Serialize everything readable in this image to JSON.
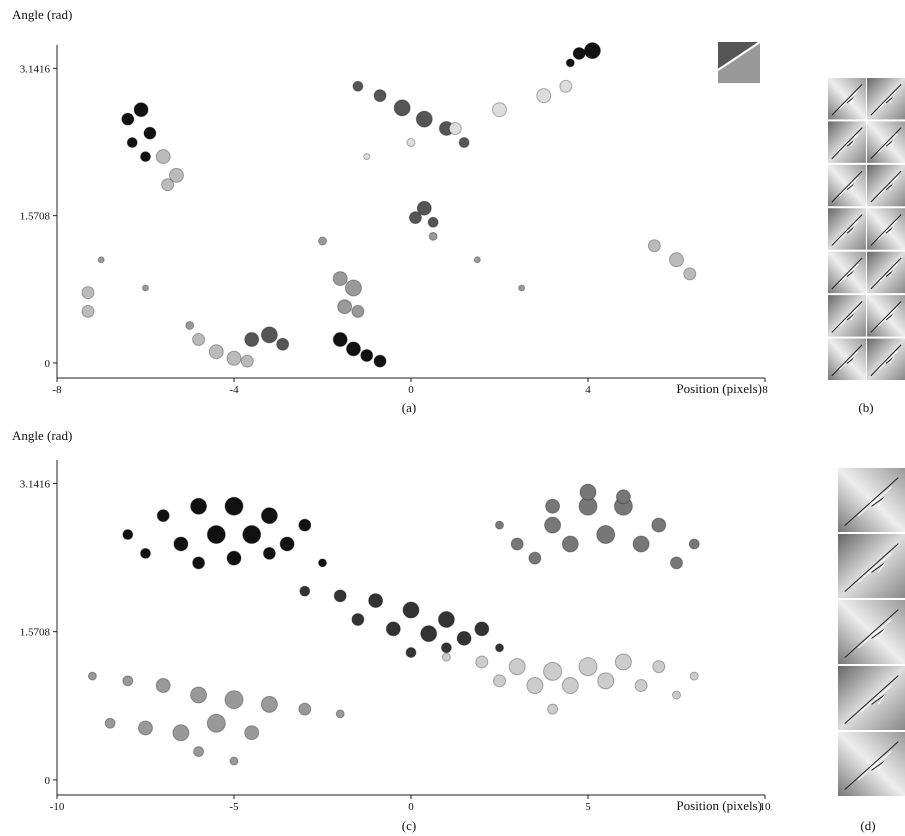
{
  "chart_data": [
    {
      "type": "scatter",
      "y_label": "Angle (rad)",
      "x_label": "Position (pixels)",
      "caption": "(a)",
      "xlim": [
        -8,
        8
      ],
      "xticks": [
        -8,
        -4,
        0,
        4,
        8
      ],
      "ylim": [
        -0.16,
        3.39
      ],
      "yticks": [
        0,
        1.5708,
        3.1416
      ],
      "series": [
        {
          "color": "#111111",
          "x": [
            -6.4,
            -6.1,
            -5.9,
            -6.3,
            -6.0,
            -1.6,
            -1.3,
            -1.0,
            -0.7,
            3.8,
            4.1,
            3.6
          ],
          "y": [
            2.6,
            2.7,
            2.45,
            2.35,
            2.2,
            0.25,
            0.15,
            0.08,
            0.02,
            3.3,
            3.33,
            3.2
          ],
          "size": [
            6,
            7,
            6,
            5,
            5,
            7,
            7,
            6,
            6,
            6,
            8,
            4
          ]
        },
        {
          "color": "#555555",
          "x": [
            -1.2,
            -0.7,
            -0.2,
            0.3,
            0.8,
            1.2,
            -3.6,
            -3.2,
            -2.9,
            0.1,
            0.3,
            0.5
          ],
          "y": [
            2.95,
            2.85,
            2.72,
            2.6,
            2.5,
            2.35,
            0.25,
            0.3,
            0.2,
            1.55,
            1.65,
            1.5
          ],
          "size": [
            5,
            6,
            8,
            8,
            7,
            5,
            7,
            8,
            6,
            6,
            7,
            5
          ]
        },
        {
          "color": "#999999",
          "x": [
            -1.6,
            -1.3,
            -1.5,
            -1.2,
            -2.0,
            0.5,
            1.5,
            2.5,
            -7.0,
            -6.0,
            -5.0
          ],
          "y": [
            0.9,
            0.8,
            0.6,
            0.55,
            1.3,
            1.35,
            1.1,
            0.8,
            1.1,
            0.8,
            0.4
          ],
          "size": [
            7,
            8,
            7,
            6,
            4,
            4,
            3,
            3,
            3,
            3,
            4
          ]
        },
        {
          "color": "#bbbbbb",
          "x": [
            -5.6,
            -5.3,
            -5.5,
            5.5,
            6.0,
            6.3,
            -4.8,
            -4.4,
            -4.0,
            -3.7,
            -7.3,
            -7.3
          ],
          "y": [
            2.2,
            2.0,
            1.9,
            1.25,
            1.1,
            0.95,
            0.25,
            0.12,
            0.05,
            0.02,
            0.75,
            0.55
          ],
          "size": [
            7,
            7,
            6,
            6,
            7,
            6,
            6,
            7,
            7,
            6,
            6,
            6
          ]
        },
        {
          "color": "#dddddd",
          "x": [
            -1.0,
            0.0,
            1.0,
            2.0,
            3.0,
            3.5
          ],
          "y": [
            2.2,
            2.35,
            2.5,
            2.7,
            2.85,
            2.95
          ],
          "size": [
            3,
            4,
            6,
            7,
            7,
            6
          ]
        }
      ]
    },
    {
      "type": "scatter",
      "y_label": "Angle (rad)",
      "x_label": "Position (pixels)",
      "caption": "(c)",
      "xlim": [
        -10,
        10
      ],
      "xticks": [
        -10,
        -5,
        0,
        5,
        10
      ],
      "ylim": [
        -0.16,
        3.39
      ],
      "yticks": [
        0,
        1.5708,
        3.1416
      ],
      "series": [
        {
          "color": "#111111",
          "x": [
            -8,
            -7,
            -6,
            -5,
            -4,
            -3,
            -7.5,
            -6.5,
            -5.5,
            -4.5,
            -3.5,
            -6,
            -5,
            -4,
            -2.5
          ],
          "y": [
            2.6,
            2.8,
            2.9,
            2.9,
            2.8,
            2.7,
            2.4,
            2.5,
            2.6,
            2.6,
            2.5,
            2.3,
            2.35,
            2.4,
            2.3
          ],
          "size": [
            5,
            6,
            8,
            9,
            8,
            6,
            5,
            7,
            9,
            9,
            7,
            6,
            7,
            6,
            4
          ]
        },
        {
          "color": "#777777",
          "x": [
            3,
            4,
            5,
            6,
            7,
            8,
            3.5,
            4.5,
            5.5,
            6.5,
            7.5,
            4,
            5,
            6,
            2.5
          ],
          "y": [
            2.5,
            2.7,
            2.9,
            2.9,
            2.7,
            2.5,
            2.35,
            2.5,
            2.6,
            2.5,
            2.3,
            2.9,
            3.05,
            3.0,
            2.7
          ],
          "size": [
            6,
            8,
            9,
            9,
            7,
            5,
            6,
            8,
            9,
            8,
            6,
            7,
            8,
            7,
            4
          ]
        },
        {
          "color": "#333333",
          "x": [
            -3,
            -2,
            -1,
            0,
            1,
            2,
            -1.5,
            -0.5,
            0.5,
            1.5,
            2.5,
            0,
            1
          ],
          "y": [
            2.0,
            1.95,
            1.9,
            1.8,
            1.7,
            1.6,
            1.7,
            1.6,
            1.55,
            1.5,
            1.4,
            1.35,
            1.4
          ],
          "size": [
            5,
            6,
            7,
            8,
            8,
            7,
            6,
            7,
            8,
            7,
            4,
            5,
            5
          ]
        },
        {
          "color": "#cccccc",
          "x": [
            1,
            2,
            3,
            4,
            5,
            6,
            7,
            8,
            2.5,
            3.5,
            4.5,
            5.5,
            6.5,
            7.5,
            4
          ],
          "y": [
            1.3,
            1.25,
            1.2,
            1.15,
            1.2,
            1.25,
            1.2,
            1.1,
            1.05,
            1.0,
            1.0,
            1.05,
            1.0,
            0.9,
            0.75
          ],
          "size": [
            4,
            6,
            8,
            9,
            9,
            8,
            6,
            4,
            6,
            8,
            8,
            8,
            6,
            4,
            5
          ]
        },
        {
          "color": "#999999",
          "x": [
            -9,
            -8,
            -7,
            -6,
            -5,
            -4,
            -3,
            -2,
            -8.5,
            -7.5,
            -6.5,
            -5.5,
            -4.5,
            -6,
            -5
          ],
          "y": [
            1.1,
            1.05,
            1.0,
            0.9,
            0.85,
            0.8,
            0.75,
            0.7,
            0.6,
            0.55,
            0.5,
            0.6,
            0.5,
            0.3,
            0.2
          ],
          "size": [
            4,
            5,
            7,
            8,
            9,
            8,
            6,
            4,
            5,
            7,
            8,
            9,
            7,
            5,
            4
          ]
        }
      ]
    }
  ],
  "panels": [
    {
      "caption": "(b)"
    },
    {
      "caption": "(d)"
    }
  ]
}
